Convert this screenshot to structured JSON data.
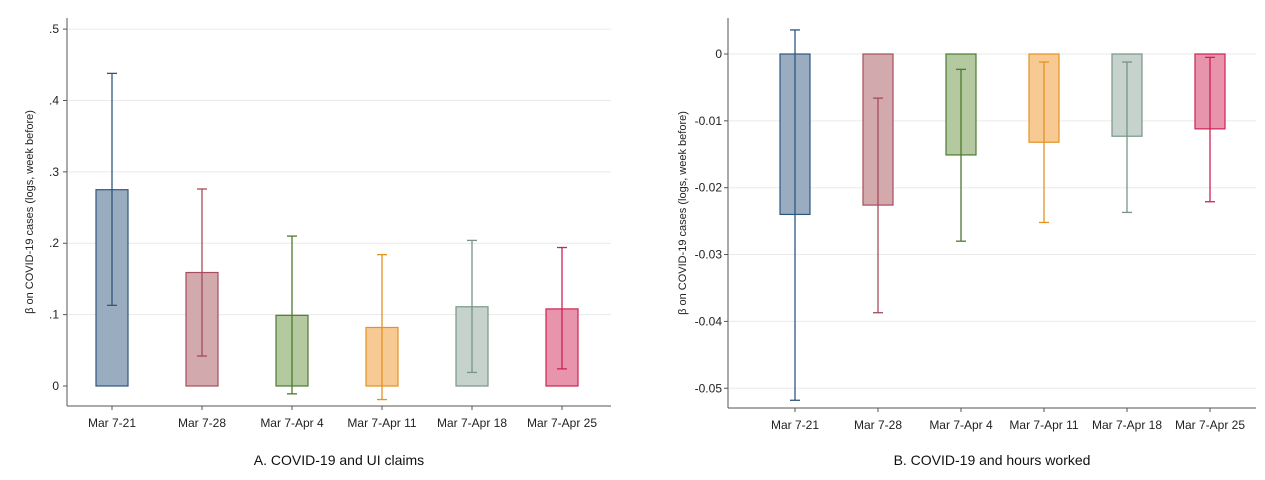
{
  "chart_data": [
    {
      "type": "bar",
      "panel": "A",
      "caption": "A. COVID-19 and UI claims",
      "ylabel": "β on COVID-19 cases (logs, week before)",
      "xlabel": "",
      "ylim": [
        -0.03,
        0.5
      ],
      "yticks": [
        0,
        0.1,
        0.2,
        0.3,
        0.4,
        0.5
      ],
      "ytick_labels": [
        "0",
        ".1",
        ".2",
        ".3",
        ".4",
        ".5"
      ],
      "grid": true,
      "error_bars": "confidence interval",
      "categories": [
        "Mar 7-21",
        "Mar 7-28",
        "Mar 7-Apr 4",
        "Mar 7-Apr 11",
        "Mar 7-Apr 18",
        "Mar 7-Apr 25"
      ],
      "values": [
        0.275,
        0.159,
        0.099,
        0.082,
        0.111,
        0.108
      ],
      "ci_low": [
        0.113,
        0.042,
        -0.011,
        -0.019,
        0.019,
        0.024
      ],
      "ci_high": [
        0.438,
        0.276,
        0.21,
        0.184,
        0.204,
        0.194
      ],
      "colors": [
        "#9aacc0",
        "#d2aaad",
        "#b5c9a1",
        "#f7ca93",
        "#c6d3cd",
        "#e994ad"
      ],
      "edge_colors": [
        "#2e5780",
        "#a64c5a",
        "#4d7a2f",
        "#e39322",
        "#7a9488",
        "#cc2455"
      ]
    },
    {
      "type": "bar",
      "panel": "B",
      "caption": "B. COVID-19 and hours worked",
      "ylabel": "β on COVID-19 cases (logs, week before)",
      "xlabel": "",
      "ylim": [
        -0.0535,
        0.0043
      ],
      "yticks": [
        0,
        -0.01,
        -0.02,
        -0.03,
        -0.04,
        -0.05
      ],
      "ytick_labels": [
        "0",
        "-0.01",
        "-0.02",
        "-0.03",
        "-0.04",
        "-0.05"
      ],
      "grid": true,
      "error_bars": "confidence interval",
      "categories": [
        "Mar 7-21",
        "Mar 7-28",
        "Mar 7-Apr 4",
        "Mar 7-Apr 11",
        "Mar 7-Apr 18",
        "Mar 7-Apr 25"
      ],
      "values": [
        -0.024,
        -0.0226,
        -0.0151,
        -0.0132,
        -0.0123,
        -0.0112
      ],
      "ci_low": [
        -0.0518,
        -0.0387,
        -0.028,
        -0.0252,
        -0.0237,
        -0.0221
      ],
      "ci_high": [
        0.0036,
        -0.0066,
        -0.0023,
        -0.0012,
        -0.0012,
        -0.0005
      ],
      "colors": [
        "#9aacc0",
        "#d2aaad",
        "#b5c9a1",
        "#f7ca93",
        "#c6d3cd",
        "#e994ad"
      ],
      "edge_colors": [
        "#2e5780",
        "#a64c5a",
        "#4d7a2f",
        "#e39322",
        "#7a9488",
        "#cc2455"
      ]
    }
  ]
}
